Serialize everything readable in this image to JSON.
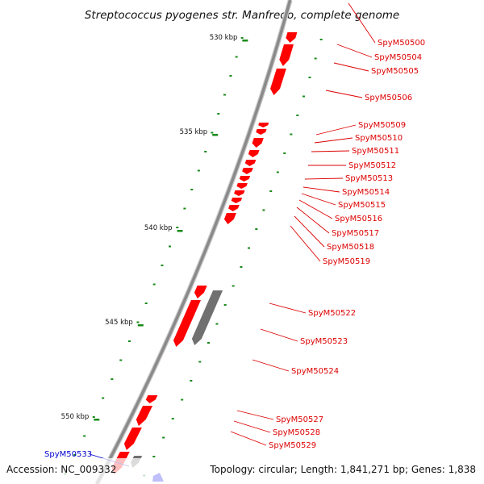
{
  "title": "Streptococcus pyogenes str. Manfredo, complete genome",
  "accession": "Accession: NC_009332",
  "topology": "Topology: circular; Length: 1,841,271 bp; Genes: 1,838",
  "colors": {
    "backbone": "#8a8a8a",
    "tick": "#1a8a1a",
    "gene_red": "#ff0000",
    "gene_gray": "#707070",
    "gene_blue": "#0000ee",
    "label_red": "#dd0000",
    "label_blue": "#0000cc"
  },
  "scale_ticks": [
    "530 kbp",
    "535 kbp",
    "540 kbp",
    "545 kbp",
    "550 kbp"
  ],
  "gene_labels": [
    {
      "text": "SpyM50500",
      "color": "red"
    },
    {
      "text": "SpyM50504",
      "color": "red"
    },
    {
      "text": "SpyM50505",
      "color": "red"
    },
    {
      "text": "SpyM50506",
      "color": "red"
    },
    {
      "text": "SpyM50509",
      "color": "red"
    },
    {
      "text": "SpyM50510",
      "color": "red"
    },
    {
      "text": "SpyM50511",
      "color": "red"
    },
    {
      "text": "SpyM50512",
      "color": "red"
    },
    {
      "text": "SpyM50513",
      "color": "red"
    },
    {
      "text": "SpyM50514",
      "color": "red"
    },
    {
      "text": "SpyM50515",
      "color": "red"
    },
    {
      "text": "SpyM50516",
      "color": "red"
    },
    {
      "text": "SpyM50517",
      "color": "red"
    },
    {
      "text": "SpyM50518",
      "color": "red"
    },
    {
      "text": "SpyM50519",
      "color": "red"
    },
    {
      "text": "SpyM50522",
      "color": "red"
    },
    {
      "text": "SpyM50523",
      "color": "red"
    },
    {
      "text": "SpyM50524",
      "color": "red"
    },
    {
      "text": "SpyM50527",
      "color": "red"
    },
    {
      "text": "SpyM50528",
      "color": "red"
    },
    {
      "text": "SpyM50529",
      "color": "red"
    },
    {
      "text": "SpyM50533",
      "color": "blue"
    }
  ]
}
